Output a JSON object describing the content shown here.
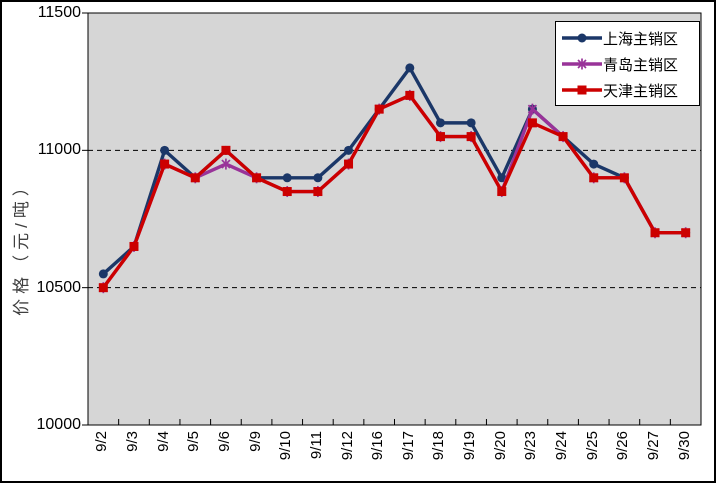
{
  "chart_data": {
    "type": "line",
    "title": "",
    "ylabel": "价格（元/吨）",
    "xlabel": "",
    "ylim": [
      10000,
      11500
    ],
    "yticks": [
      11500,
      11000,
      10500,
      10000
    ],
    "gridlines": [
      11000,
      10500
    ],
    "grid_style": "dashed",
    "legend_position": "top-right",
    "plot_bg": "#d6d6d6",
    "axis_color": "#000000",
    "categories": [
      "9/2",
      "9/3",
      "9/4",
      "9/5",
      "9/6",
      "9/9",
      "9/10",
      "9/11",
      "9/12",
      "9/16",
      "9/17",
      "9/18",
      "9/19",
      "9/20",
      "9/23",
      "9/24",
      "9/25",
      "9/26",
      "9/27",
      "9/30"
    ],
    "series": [
      {
        "name": "上海主销区",
        "color": "#1b3768",
        "marker": "circle",
        "values": [
          10550,
          10650,
          11000,
          10900,
          11000,
          10900,
          10900,
          10900,
          11000,
          11150,
          11300,
          11100,
          11100,
          10900,
          11150,
          11050,
          10950,
          10900,
          10700,
          10700
        ]
      },
      {
        "name": "青岛主销区",
        "color": "#993399",
        "marker": "asterisk",
        "values": [
          10500,
          10650,
          10950,
          10900,
          10950,
          10900,
          10850,
          10850,
          10950,
          11150,
          11200,
          11050,
          11050,
          10850,
          11150,
          11050,
          10900,
          10900,
          10700,
          10700
        ]
      },
      {
        "name": "天津主销区",
        "color": "#cc0000",
        "marker": "square",
        "values": [
          10500,
          10650,
          10950,
          10900,
          11000,
          10900,
          10850,
          10850,
          10950,
          11150,
          11200,
          11050,
          11050,
          10850,
          11100,
          11050,
          10900,
          10900,
          10700,
          10700
        ]
      }
    ]
  }
}
